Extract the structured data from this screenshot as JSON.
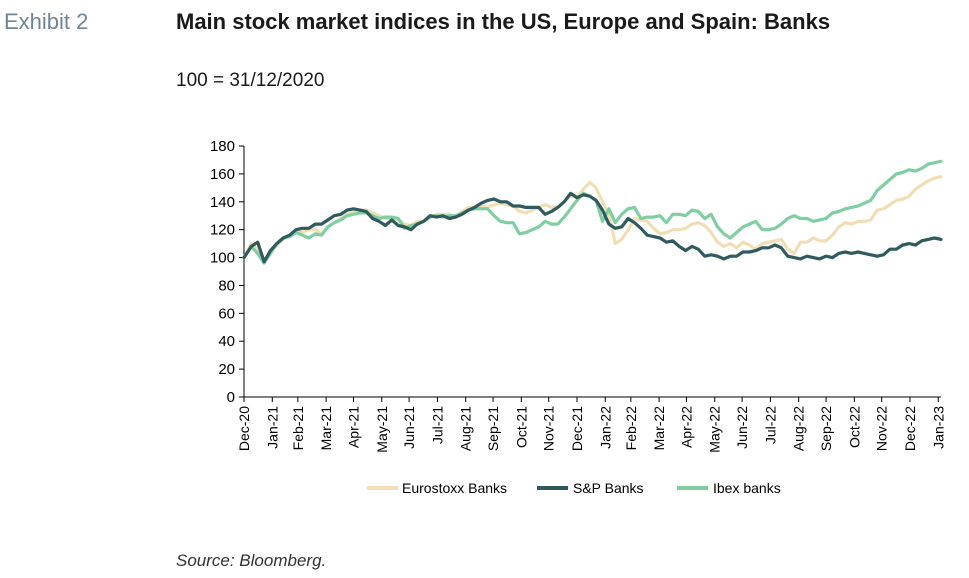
{
  "header": {
    "exhibit": "Exhibit 2",
    "title": "Main stock market indices in the US, Europe and Spain: Banks",
    "subtitle": "100 = 31/12/2020"
  },
  "footer": {
    "source": "Source: Bloomberg."
  },
  "chart_data": {
    "type": "line",
    "title": "Main stock market indices in the US, Europe and Spain: Banks",
    "subtitle": "100 = 31/12/2020",
    "xlabel": "",
    "ylabel": "",
    "ylim": [
      0,
      180
    ],
    "yticks": [
      0,
      20,
      40,
      60,
      80,
      100,
      120,
      140,
      160,
      180
    ],
    "xticks": [
      "Dec-20",
      "Jan-21",
      "Feb-21",
      "Mar-21",
      "Apr-21",
      "May-21",
      "Jun-21",
      "Jul-21",
      "Aug-21",
      "Sep-21",
      "Oct-21",
      "Nov-21",
      "Dec-21",
      "Jan-22",
      "Feb-22",
      "Mar-22",
      "Apr-22",
      "May-22",
      "Jun-22",
      "Jul-22",
      "Aug-22",
      "Sep-22",
      "Oct-22",
      "Nov-22",
      "Dec-22",
      "Jan-23"
    ],
    "grid": false,
    "legend_position": "bottom",
    "x": [
      "2020-12-31",
      "2021-01-08",
      "2021-01-15",
      "2021-01-22",
      "2021-01-29",
      "2021-02-05",
      "2021-02-12",
      "2021-02-19",
      "2021-02-26",
      "2021-03-05",
      "2021-03-12",
      "2021-03-19",
      "2021-03-26",
      "2021-04-02",
      "2021-04-09",
      "2021-04-16",
      "2021-04-23",
      "2021-04-30",
      "2021-05-07",
      "2021-05-14",
      "2021-05-21",
      "2021-05-28",
      "2021-06-04",
      "2021-06-11",
      "2021-06-18",
      "2021-06-25",
      "2021-07-02",
      "2021-07-09",
      "2021-07-16",
      "2021-07-23",
      "2021-07-30",
      "2021-08-06",
      "2021-08-13",
      "2021-08-20",
      "2021-08-27",
      "2021-09-03",
      "2021-09-10",
      "2021-09-17",
      "2021-09-24",
      "2021-10-01",
      "2021-10-08",
      "2021-10-15",
      "2021-10-22",
      "2021-10-29",
      "2021-11-05",
      "2021-11-12",
      "2021-11-19",
      "2021-11-26",
      "2021-12-03",
      "2021-12-10",
      "2021-12-17",
      "2021-12-24",
      "2021-12-31",
      "2022-01-07",
      "2022-01-14",
      "2022-01-21",
      "2022-01-28",
      "2022-02-04",
      "2022-02-11",
      "2022-02-18",
      "2022-02-25",
      "2022-03-04",
      "2022-03-11",
      "2022-03-18",
      "2022-03-25",
      "2022-04-01",
      "2022-04-08",
      "2022-04-15",
      "2022-04-22",
      "2022-04-29",
      "2022-05-06",
      "2022-05-13",
      "2022-05-20",
      "2022-05-27",
      "2022-06-03",
      "2022-06-10",
      "2022-06-17",
      "2022-06-24",
      "2022-07-01",
      "2022-07-08",
      "2022-07-15",
      "2022-07-22",
      "2022-07-29",
      "2022-08-05",
      "2022-08-12",
      "2022-08-19",
      "2022-08-26",
      "2022-09-02",
      "2022-09-09",
      "2022-09-16",
      "2022-09-23",
      "2022-09-30",
      "2022-10-07",
      "2022-10-14",
      "2022-10-21",
      "2022-10-28",
      "2022-11-04",
      "2022-11-11",
      "2022-11-18",
      "2022-11-25",
      "2022-12-02",
      "2022-12-09",
      "2022-12-16",
      "2022-12-23",
      "2022-12-30",
      "2023-01-06",
      "2023-01-13",
      "2023-01-20",
      "2023-01-27",
      "2023-02-03"
    ],
    "series": [
      {
        "name": "Eurostoxx Banks",
        "color": "#f0dfb4",
        "values": [
          100,
          110,
          106,
          98,
          104,
          109,
          113,
          116,
          119,
          118,
          120,
          120,
          117,
          122,
          125,
          128,
          131,
          133,
          134,
          134,
          132,
          130,
          128,
          128,
          127,
          124,
          123,
          126,
          126,
          129,
          131,
          131,
          131,
          129,
          133,
          136,
          136,
          137,
          136,
          138,
          139,
          138,
          137,
          133,
          132,
          134,
          136,
          138,
          136,
          136,
          140,
          144,
          143,
          149,
          154,
          150,
          140,
          131,
          110,
          113,
          120,
          128,
          127,
          126,
          121,
          117,
          118,
          120,
          120,
          121,
          124,
          125,
          123,
          118,
          111,
          108,
          110,
          107,
          111,
          109,
          106,
          110,
          111,
          112,
          113,
          106,
          103,
          111,
          111,
          114,
          112,
          112,
          116,
          122,
          125,
          124,
          126,
          126,
          127,
          134,
          135,
          138,
          141,
          142,
          144,
          149,
          152,
          155,
          157,
          158
        ]
      },
      {
        "name": "S&P Banks",
        "color": "#2f5a5e",
        "values": [
          100,
          108,
          111,
          97,
          105,
          110,
          114,
          116,
          120,
          121,
          121,
          124,
          124,
          127,
          130,
          131,
          134,
          135,
          134,
          133,
          128,
          126,
          123,
          127,
          123,
          122,
          120,
          124,
          126,
          130,
          129,
          130,
          128,
          129,
          131,
          134,
          136,
          139,
          141,
          142,
          140,
          140,
          137,
          137,
          136,
          136,
          136,
          131,
          133,
          136,
          140,
          146,
          143,
          145,
          144,
          141,
          134,
          124,
          121,
          122,
          128,
          125,
          121,
          116,
          115,
          114,
          111,
          112,
          108,
          105,
          108,
          106,
          101,
          102,
          101,
          99,
          101,
          101,
          104,
          104,
          105,
          107,
          107,
          109,
          107,
          101,
          100,
          99,
          101,
          100,
          99,
          101,
          100,
          103,
          104,
          103,
          104,
          103,
          102,
          101,
          102,
          106,
          106,
          109,
          110,
          109,
          112,
          113,
          114,
          113
        ]
      },
      {
        "name": "Ibex banks",
        "color": "#7fcfa2",
        "values": [
          100,
          108,
          103,
          96,
          103,
          110,
          114,
          115,
          118,
          116,
          114,
          117,
          116,
          122,
          125,
          127,
          130,
          131,
          132,
          132,
          130,
          128,
          129,
          129,
          128,
          121,
          123,
          124,
          126,
          129,
          130,
          129,
          130,
          130,
          132,
          134,
          135,
          135,
          135,
          130,
          126,
          125,
          125,
          117,
          118,
          120,
          122,
          126,
          124,
          124,
          129,
          135,
          141,
          146,
          144,
          141,
          126,
          135,
          125,
          131,
          135,
          136,
          128,
          129,
          129,
          130,
          125,
          131,
          131,
          130,
          134,
          133,
          128,
          131,
          122,
          117,
          114,
          118,
          122,
          124,
          126,
          120,
          120,
          121,
          124,
          128,
          130,
          128,
          128,
          126,
          127,
          128,
          132,
          133,
          135,
          136,
          137,
          139,
          141,
          148,
          152,
          156,
          160,
          161,
          163,
          162,
          164,
          167,
          168,
          169
        ]
      }
    ]
  }
}
